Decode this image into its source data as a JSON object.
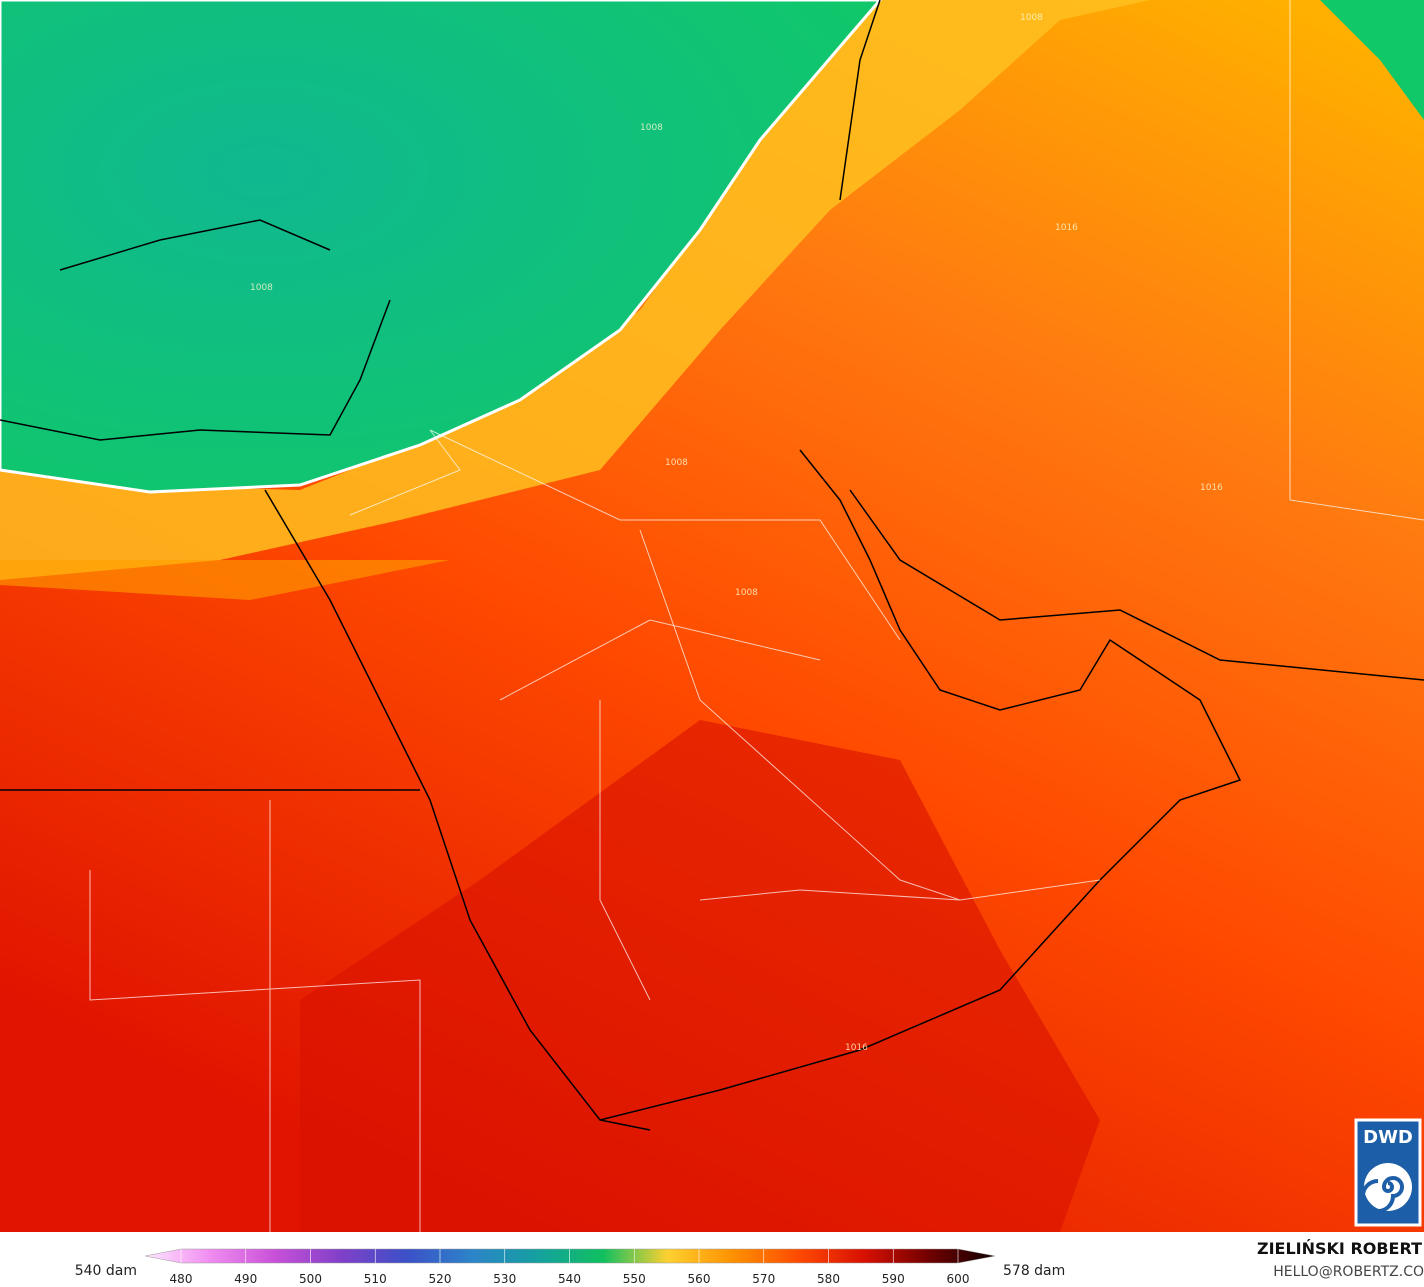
{
  "map": {
    "contour_labels": [
      "1008",
      "1008",
      "1008",
      "1008",
      "1016",
      "1016",
      "1008",
      "1016"
    ]
  },
  "colorbar": {
    "left_label": "540 dam",
    "right_label": "578 dam",
    "ticks": [
      480,
      490,
      500,
      510,
      520,
      530,
      540,
      550,
      560,
      570,
      580,
      590,
      600
    ],
    "colors": [
      "#ffe8ff",
      "#f08cf0",
      "#c850d8",
      "#8040c8",
      "#3c50c8",
      "#2c84c8",
      "#14a0a0",
      "#10c060",
      "#ffd030",
      "#ff9000",
      "#ff4a00",
      "#d81000",
      "#700000",
      "#100000"
    ]
  },
  "credit": {
    "name": "ZIELIŃSKI ROBERT",
    "email": "HELLO@ROBERTZ.CO"
  },
  "logo": {
    "text": "DWD"
  }
}
